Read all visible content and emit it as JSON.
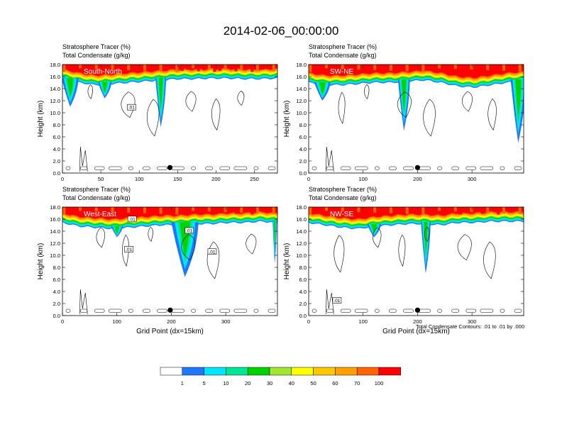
{
  "figure_title": "2014-02-06_00:00:00",
  "contour_note": "Total Condensate Contours: .01 to .01 by .000",
  "colorbar": {
    "colors": [
      "#ffffff",
      "#1e78ff",
      "#00e6ff",
      "#00e696",
      "#00d200",
      "#a0e632",
      "#ffff00",
      "#ffc800",
      "#ffa000",
      "#ff6400",
      "#ff0000"
    ],
    "labels": [
      "1",
      "5",
      "10",
      "20",
      "30",
      "40",
      "50",
      "60",
      "70",
      "100"
    ]
  },
  "chart_data": [
    {
      "type": "heatmap",
      "name": "South-North",
      "title_line1": "Stratosphere Tracer   (%)",
      "title_line2": "Total Condensate   (g/kg)",
      "xlabel": "",
      "ylabel": "Height (km)",
      "xlim": [
        0,
        280
      ],
      "ylim": [
        0,
        18
      ],
      "xticks": [
        "0",
        "50",
        "100",
        "150",
        "200",
        "250"
      ],
      "xtick_values": [
        0,
        50,
        100,
        150,
        200,
        250
      ],
      "yticks": [
        "0.0",
        "2.0",
        "4.0",
        "6.0",
        "8.0",
        "10.0",
        "12.0",
        "14.0",
        "16.0",
        "18.0"
      ],
      "tracer_base_km": [
        15.6,
        15.0,
        14.6,
        14.8,
        15.0,
        15.2,
        15.4,
        15.6,
        15.6,
        15.7,
        15.7,
        15.6,
        15.6,
        15.7
      ],
      "tracer_dips": [
        {
          "x": 10,
          "bottom_km": 11.0,
          "width": 22
        },
        {
          "x": 128,
          "bottom_km": 7.6,
          "width": 14
        },
        {
          "x": 55,
          "bottom_km": 12.4,
          "width": 18
        }
      ],
      "marker_x": 140,
      "contour_labels": [
        {
          "text": ".01",
          "x": 90,
          "y": 10.8
        }
      ]
    },
    {
      "type": "heatmap",
      "name": "SW-NE",
      "title_line1": "Stratosphere Tracer   (%)",
      "title_line2": "Total Condensate   (g/kg)",
      "xlabel": "",
      "ylabel": "Height (km)",
      "xlim": [
        0,
        395
      ],
      "ylim": [
        0,
        18
      ],
      "xticks": [
        "0",
        "100",
        "200",
        "300"
      ],
      "xtick_values": [
        0,
        100,
        200,
        300
      ],
      "yticks": [
        "0.0",
        "2.0",
        "4.0",
        "6.0",
        "8.0",
        "10.0",
        "12.0",
        "14.0",
        "16.0",
        "18.0"
      ],
      "tracer_base_km": [
        15.0,
        14.6,
        14.6,
        14.8,
        15.0,
        15.0,
        15.2,
        15.4,
        15.0,
        14.4,
        14.2,
        14.6,
        15.0,
        15.2
      ],
      "tracer_dips": [
        {
          "x": 25,
          "bottom_km": 12.0,
          "width": 30
        },
        {
          "x": 175,
          "bottom_km": 7.0,
          "width": 22
        },
        {
          "x": 385,
          "bottom_km": 5.0,
          "width": 28
        }
      ],
      "marker_x": 200,
      "contour_labels": []
    },
    {
      "type": "heatmap",
      "name": "West-East",
      "title_line1": "Stratosphere Tracer   (%)",
      "title_line2": "Total Condensate   (g/kg)",
      "xlabel": "Grid Point (dx=15km)",
      "ylabel": "Height (km)",
      "xlim": [
        0,
        395
      ],
      "ylim": [
        0,
        18
      ],
      "xticks": [
        "0",
        "100",
        "200",
        "300"
      ],
      "xtick_values": [
        0,
        100,
        200,
        300
      ],
      "yticks": [
        "0.0",
        "2.0",
        "4.0",
        "6.0",
        "8.0",
        "10.0",
        "12.0",
        "14.0",
        "16.0",
        "18.0"
      ],
      "tracer_base_km": [
        15.4,
        14.8,
        14.6,
        14.4,
        14.6,
        14.8,
        15.0,
        15.0,
        15.2,
        15.2,
        15.4,
        15.4,
        15.6,
        15.4
      ],
      "tracer_dips": [
        {
          "x": 225,
          "bottom_km": 6.4,
          "width": 50
        },
        {
          "x": 100,
          "bottom_km": 13.0,
          "width": 22
        },
        {
          "x": 390,
          "bottom_km": 8.6,
          "width": 8
        }
      ],
      "marker_x": 198,
      "contour_labels": [
        {
          "text": ".01",
          "x": 128,
          "y": 15.9
        },
        {
          "text": ".01",
          "x": 233,
          "y": 14.0
        },
        {
          "text": ".01",
          "x": 122,
          "y": 10.9
        },
        {
          "text": ".01",
          "x": 275,
          "y": 10.5
        }
      ]
    },
    {
      "type": "heatmap",
      "name": "NW-SE",
      "title_line1": "Stratosphere Tracer   (%)",
      "title_line2": "Total Condensate   (g/kg)",
      "xlabel": "Grid Point (dx=15km)",
      "ylabel": "Height (km)",
      "xlim": [
        0,
        395
      ],
      "ylim": [
        0,
        18
      ],
      "xticks": [
        "0",
        "100",
        "200",
        "300"
      ],
      "xtick_values": [
        0,
        100,
        200,
        300
      ],
      "yticks": [
        "0.0",
        "2.0",
        "4.0",
        "6.0",
        "8.0",
        "10.0",
        "12.0",
        "14.0",
        "16.0",
        "18.0"
      ],
      "tracer_base_km": [
        15.4,
        15.0,
        14.6,
        14.4,
        14.8,
        15.0,
        15.2,
        15.2,
        15.0,
        15.4,
        15.4,
        15.6,
        15.6,
        15.6
      ],
      "tracer_dips": [
        {
          "x": 215,
          "bottom_km": 7.0,
          "width": 18
        },
        {
          "x": 120,
          "bottom_km": 13.0,
          "width": 26
        }
      ],
      "marker_x": 200,
      "contour_labels": [
        {
          "text": ".01",
          "x": 52,
          "y": 2.4
        }
      ]
    }
  ]
}
